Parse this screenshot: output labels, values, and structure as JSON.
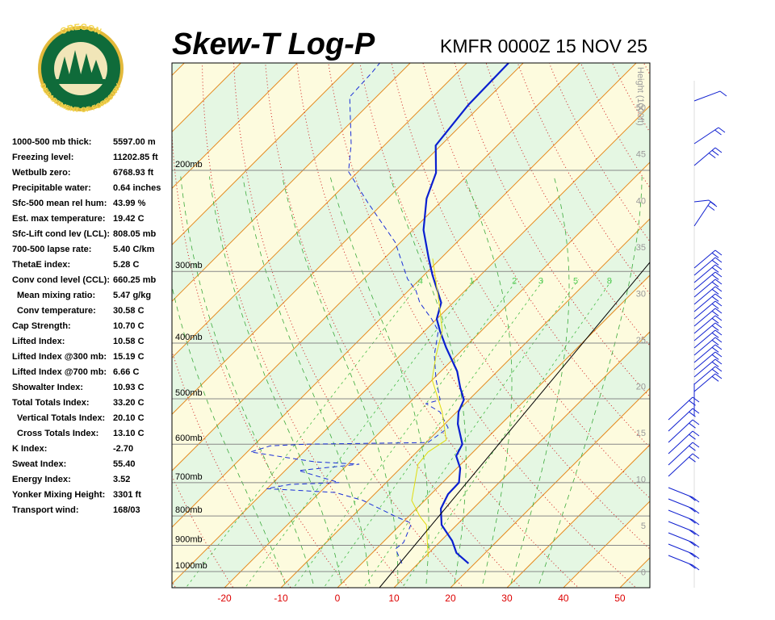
{
  "logo": {
    "top": "OREGON",
    "bottom": "DEPARTMENT OF FORESTRY"
  },
  "indices": [
    {
      "label": "1000-500 mb thick:",
      "value": "5597.00 m"
    },
    {
      "label": "Freezing level:",
      "value": "11202.85 ft"
    },
    {
      "label": "Wetbulb zero:",
      "value": "6768.93 ft"
    },
    {
      "label": "Precipitable water:",
      "value": "0.64 inches"
    },
    {
      "label": "Sfc-500 mean rel hum:",
      "value": "43.99 %"
    },
    {
      "label": "Est. max temperature:",
      "value": "19.42 C"
    },
    {
      "label": "Sfc-Lift cond lev (LCL):",
      "value": "808.05 mb"
    },
    {
      "label": "700-500 lapse rate:",
      "value": "5.40 C/km"
    },
    {
      "label": "ThetaE index:",
      "value": "5.28 C"
    },
    {
      "label": "Conv cond level (CCL):",
      "value": "660.25 mb"
    },
    {
      "label": "Mean mixing ratio:",
      "value": "5.47 g/kg"
    },
    {
      "label": "Conv temperature:",
      "value": "30.58 C"
    },
    {
      "label": "Cap Strength:",
      "value": "10.70 C"
    },
    {
      "label": "Lifted Index:",
      "value": "10.58 C"
    },
    {
      "label": "Lifted Index @300 mb:",
      "value": "15.19 C"
    },
    {
      "label": "Lifted Index @700 mb:",
      "value": "6.66 C"
    },
    {
      "label": "Showalter Index:",
      "value": "10.93 C"
    },
    {
      "label": "Total Totals Index:",
      "value": "33.20 C"
    },
    {
      "label": "Vertical Totals Index:",
      "value": "20.10 C"
    },
    {
      "label": "Cross Totals Index:",
      "value": "13.10 C"
    },
    {
      "label": "K Index:",
      "value": "-2.70"
    },
    {
      "label": "Sweat Index:",
      "value": "55.40"
    },
    {
      "label": "Energy Index:",
      "value": "3.52"
    },
    {
      "label": "Yonker Mixing Height:",
      "value": "3301 ft"
    },
    {
      "label": "Transport wind:",
      "value": "168/03"
    }
  ],
  "chart_data": {
    "type": "skewt",
    "title": "Skew-T Log-P",
    "subtitle": "KMFR 0000Z 15 NOV 25",
    "y2label": "Height (1000ft)",
    "xlim": [
      -29.3,
      55.3
    ],
    "xticks": [
      -20,
      -10,
      0,
      10,
      20,
      30,
      40,
      50
    ],
    "ylim": [
      1067,
      130
    ],
    "log_y": true,
    "yticks": [
      {
        "value": 200,
        "label": "200mb"
      },
      {
        "value": 300,
        "label": "300mb"
      },
      {
        "value": 400,
        "label": "400mb"
      },
      {
        "value": 500,
        "label": "500mb"
      },
      {
        "value": 600,
        "label": "600mb"
      },
      {
        "value": 700,
        "label": "700mb"
      },
      {
        "value": 800,
        "label": "800mb"
      },
      {
        "value": 900,
        "label": "900mb"
      },
      {
        "value": 1000,
        "label": "1000mb"
      }
    ],
    "y2lim": [
      -1.7,
      54.8
    ],
    "y2ticks": [
      0,
      5,
      10,
      15,
      20,
      25,
      30,
      35,
      40,
      45,
      50
    ],
    "mixing_ratio_lines": [
      {
        "value": 0.4,
        "label": ".4"
      },
      {
        "value": 1,
        "label": "1"
      },
      {
        "value": 2,
        "label": "2"
      },
      {
        "value": 3,
        "label": "3"
      },
      {
        "value": 5,
        "label": "5"
      },
      {
        "value": 8,
        "label": "8"
      }
    ],
    "grid": true,
    "series": [
      {
        "color": "#0a1fd0",
        "dash": false,
        "x": [
          18.9,
          14.9,
          12.0,
          7.3,
          4.3,
          3.0,
          2.9,
          0.6,
          -2.3,
          -3.3,
          -7.7,
          -9.7,
          -10.9,
          -13.7,
          -17.1,
          -23.3,
          -27.3,
          -30.0,
          -32.1,
          -38.6,
          -42.1,
          -48.1,
          -53.1,
          -56.0,
          -60.9,
          -62.3,
          -62.6
        ],
        "y": [
          968,
          928,
          884,
          829,
          777,
          733,
          700,
          661,
          629,
          600,
          553,
          527,
          502,
          478,
          448,
          407,
          381,
          363,
          340,
          304,
          285,
          254,
          224,
          202,
          181,
          154,
          130
        ]
      },
      {
        "color": "#1a2fd8",
        "dash": true,
        "x": [
          7.1,
          3.4,
          3.7,
          1.7,
          -2.3,
          -10.9,
          -17.3,
          -30.1,
          -26.6,
          -18.3,
          -23.0,
          -27.6,
          -18.0,
          -26.3,
          -39.4,
          -37.0,
          -30.9,
          -9.7,
          -8.7,
          -13.0,
          -16.9,
          -15.1,
          -19.4,
          -24.0,
          -27.6,
          -30.9,
          -35.9,
          -38.7,
          -42.3,
          -50.9,
          -63.0,
          -71.7,
          -76.1,
          -84.7,
          -85.1,
          -85.4
        ],
        "y": [
          968,
          913,
          890,
          824,
          802,
          752,
          728,
          717,
          705,
          700,
          683,
          667,
          650,
          644,
          619,
          604,
          600,
          596,
          562,
          527,
          510,
          502,
          463,
          420,
          381,
          363,
          340,
          324,
          309,
          267,
          227,
          201,
          180,
          149,
          135,
          130
        ]
      },
      {
        "color": "#e0dc10",
        "dash": false,
        "x": [
          10.6,
          4.6,
          2.0,
          -2.3,
          -7.6,
          -8.0,
          -6.9,
          -12.6,
          -20.1,
          -23.7,
          -26.9,
          -31.6,
          -41.4
        ],
        "y": [
          943,
          829,
          802,
          752,
          650,
          619,
          590,
          527,
          463,
          420,
          381,
          346,
          285
        ]
      }
    ]
  }
}
